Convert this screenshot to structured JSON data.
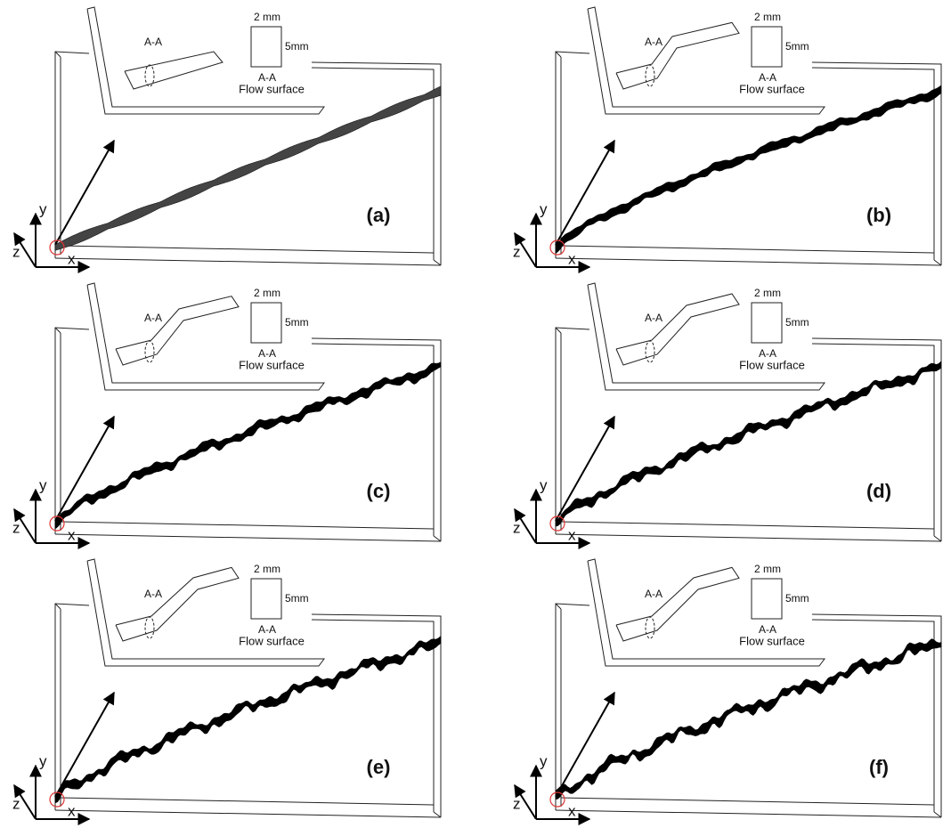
{
  "panels": [
    {
      "label": "(a)",
      "section": "A-A",
      "width": "2 mm",
      "height": "5mm",
      "view": "A-A",
      "surface": "Flow surface",
      "axis_y": "y",
      "axis_z": "z",
      "axis_x": "x"
    },
    {
      "label": "(b)",
      "section": "A-A",
      "width": "2 mm",
      "height": "5mm",
      "view": "A-A",
      "surface": "Flow surface",
      "axis_y": "y",
      "axis_z": "z",
      "axis_x": "x"
    },
    {
      "label": "(c)",
      "section": "A-A",
      "width": "2 mm",
      "height": "5mm",
      "view": "A-A",
      "surface": "Flow surface",
      "axis_y": "y",
      "axis_z": "z",
      "axis_x": "x"
    },
    {
      "label": "(d)",
      "section": "A-A",
      "width": "2 mm",
      "height": "5mm",
      "view": "A-A",
      "surface": "Flow surface",
      "axis_y": "y",
      "axis_z": "z",
      "axis_x": "x"
    },
    {
      "label": "(e)",
      "section": "A-A",
      "width": "2 mm",
      "height": "5mm",
      "view": "A-A",
      "surface": "Flow surface",
      "axis_y": "y",
      "axis_z": "z",
      "axis_x": "x"
    },
    {
      "label": "(f)",
      "section": "A-A",
      "width": "2 mm",
      "height": "5mm",
      "view": "A-A",
      "surface": "Flow surface",
      "axis_y": "y",
      "axis_z": "z",
      "axis_x": "x"
    }
  ]
}
